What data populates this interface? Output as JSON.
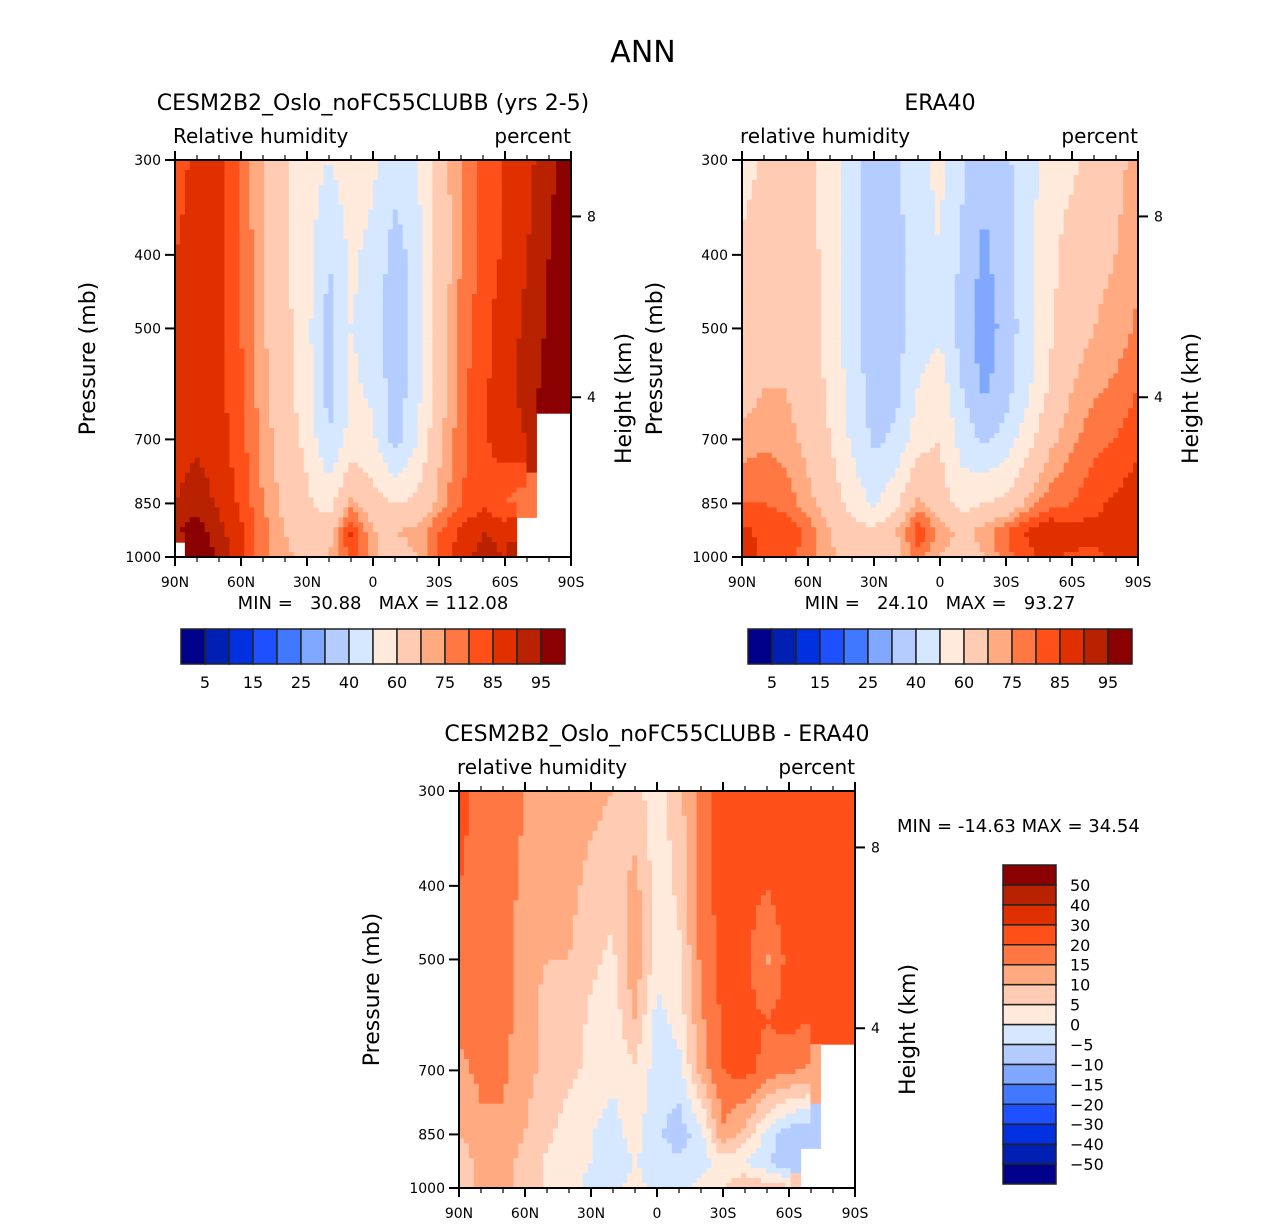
{
  "figure": {
    "main_title": "ANN",
    "palette": [
      "#00008b",
      "#0020b4",
      "#0030e0",
      "#1e50ff",
      "#4078ff",
      "#80a8ff",
      "#b4ccff",
      "#d6e8ff",
      "#ffeadb",
      "#ffccb3",
      "#ffaa80",
      "#ff7844",
      "#ff501a",
      "#e03000",
      "#b82200",
      "#8b0000"
    ]
  },
  "chart_data": [
    {
      "id": "model",
      "type": "heatmap",
      "title": "CESM2B2_Oslo_noFC55CLUBB (yrs 2-5)",
      "left_label": "Relative humidity",
      "right_label": "percent",
      "xlabel": "",
      "ylabel": "Pressure (mb)",
      "y2label": "Height (km)",
      "x_ticks": [
        "90N",
        "60N",
        "30N",
        "0",
        "30S",
        "60S",
        "90S"
      ],
      "x_values": [
        90,
        60,
        30,
        0,
        -30,
        -60,
        -90
      ],
      "xlim": [
        90,
        -90
      ],
      "y_ticks": [
        300,
        400,
        500,
        700,
        850,
        1000
      ],
      "ylim": [
        300,
        1000
      ],
      "y2_ticks": [
        {
          "label": "8",
          "p": 356
        },
        {
          "label": "4",
          "p": 616
        }
      ],
      "stats": "MIN =   30.88   MAX = 112.08",
      "colorbar": {
        "orientation": "horizontal",
        "levels": [
          5,
          10,
          15,
          20,
          25,
          30,
          40,
          50,
          60,
          70,
          75,
          80,
          85,
          90,
          95
        ],
        "labels": [
          "5",
          "15",
          "25",
          "40",
          "60",
          "75",
          "85",
          "95"
        ]
      },
      "grid_lats": [
        90,
        80,
        70,
        60,
        50,
        40,
        30,
        20,
        10,
        0,
        -10,
        -20,
        -30,
        -40,
        -50,
        -60,
        -70,
        -80,
        -90
      ],
      "grid_levels": [
        300,
        400,
        500,
        600,
        700,
        850,
        925,
        1000
      ],
      "values": [
        [
          82,
          87,
          86,
          79,
          70,
          62,
          55,
          50,
          56,
          52,
          45,
          50,
          66,
          75,
          82,
          86,
          88,
          94,
          97
        ],
        [
          85,
          88,
          87,
          80,
          70,
          62,
          54,
          40,
          52,
          47,
          35,
          45,
          64,
          75,
          82,
          86,
          90,
          95,
          98
        ],
        [
          86,
          88,
          87,
          80,
          71,
          63,
          53,
          36,
          50,
          46,
          34,
          44,
          65,
          77,
          83,
          88,
          91,
          96,
          99
        ],
        [
          86,
          88,
          87,
          81,
          72,
          64,
          54,
          36,
          52,
          48,
          34,
          46,
          66,
          78,
          84,
          88,
          92,
          97,
          100
        ],
        [
          87,
          89,
          87,
          82,
          73,
          66,
          57,
          40,
          54,
          52,
          36,
          50,
          68,
          78,
          84,
          88,
          90,
          null,
          null
        ],
        [
          90,
          93,
          89,
          84,
          75,
          68,
          62,
          56,
          72,
          64,
          60,
          62,
          72,
          80,
          84,
          80,
          76,
          null,
          null
        ],
        [
          94,
          98,
          92,
          86,
          77,
          70,
          66,
          66,
          86,
          70,
          70,
          72,
          80,
          86,
          90,
          88,
          null,
          null,
          null
        ],
        [
          null,
          99,
          94,
          86,
          77,
          72,
          66,
          70,
          82,
          72,
          66,
          70,
          80,
          88,
          92,
          90,
          null,
          null,
          null
        ]
      ]
    },
    {
      "id": "obs",
      "type": "heatmap",
      "title": "ERA40",
      "left_label": "relative humidity",
      "right_label": "percent",
      "xlabel": "",
      "ylabel": "Pressure (mb)",
      "y2label": "Height (km)",
      "x_ticks": [
        "90N",
        "60N",
        "30N",
        "0",
        "30S",
        "60S",
        "90S"
      ],
      "x_values": [
        90,
        60,
        30,
        0,
        -30,
        -60,
        -90
      ],
      "xlim": [
        90,
        -90
      ],
      "y_ticks": [
        300,
        400,
        500,
        700,
        850,
        1000
      ],
      "ylim": [
        300,
        1000
      ],
      "y2_ticks": [
        {
          "label": "8",
          "p": 356
        },
        {
          "label": "4",
          "p": 616
        }
      ],
      "stats": "MIN =   24.10   MAX =   93.27",
      "colorbar": {
        "orientation": "horizontal",
        "levels": [
          5,
          10,
          15,
          20,
          25,
          30,
          40,
          50,
          60,
          70,
          75,
          80,
          85,
          90,
          95
        ],
        "labels": [
          "5",
          "15",
          "25",
          "40",
          "60",
          "75",
          "85",
          "95"
        ]
      },
      "grid_lats": [
        90,
        80,
        70,
        60,
        50,
        40,
        30,
        20,
        10,
        0,
        -10,
        -20,
        -30,
        -40,
        -50,
        -60,
        -70,
        -80,
        -90
      ],
      "grid_levels": [
        300,
        400,
        500,
        600,
        700,
        850,
        925,
        1000
      ],
      "values": [
        [
          55,
          62,
          64,
          62,
          55,
          45,
          35,
          38,
          48,
          52,
          42,
          32,
          38,
          46,
          55,
          58,
          64,
          68,
          72
        ],
        [
          62,
          66,
          66,
          64,
          56,
          44,
          34,
          36,
          46,
          50,
          38,
          28,
          36,
          46,
          58,
          64,
          68,
          70,
          74
        ],
        [
          64,
          68,
          68,
          65,
          56,
          44,
          34,
          36,
          46,
          48,
          36,
          24,
          34,
          46,
          58,
          66,
          70,
          72,
          76
        ],
        [
          66,
          70,
          70,
          66,
          58,
          46,
          35,
          37,
          50,
          56,
          40,
          28,
          36,
          48,
          62,
          70,
          74,
          76,
          80
        ],
        [
          72,
          74,
          72,
          68,
          60,
          48,
          38,
          42,
          56,
          60,
          46,
          38,
          44,
          56,
          68,
          74,
          78,
          80,
          84
        ],
        [
          80,
          80,
          78,
          72,
          66,
          56,
          48,
          58,
          72,
          64,
          56,
          60,
          62,
          72,
          78,
          80,
          84,
          86,
          88
        ],
        [
          86,
          84,
          84,
          78,
          70,
          64,
          62,
          70,
          84,
          74,
          68,
          72,
          80,
          86,
          90,
          88,
          86,
          86,
          88
        ],
        [
          88,
          84,
          82,
          78,
          72,
          64,
          60,
          66,
          78,
          70,
          66,
          70,
          78,
          84,
          86,
          84,
          84,
          86,
          88
        ]
      ]
    },
    {
      "id": "diff",
      "type": "heatmap",
      "title": "CESM2B2_Oslo_noFC55CLUBB - ERA40",
      "left_label": "relative humidity",
      "right_label": "percent",
      "xlabel": "",
      "ylabel": "Pressure (mb)",
      "y2label": "Height (km)",
      "x_ticks": [
        "90N",
        "60N",
        "30N",
        "0",
        "30S",
        "60S",
        "90S"
      ],
      "x_values": [
        90,
        60,
        30,
        0,
        -30,
        -60,
        -90
      ],
      "xlim": [
        90,
        -90
      ],
      "y_ticks": [
        300,
        400,
        500,
        700,
        850,
        1000
      ],
      "ylim": [
        300,
        1000
      ],
      "y2_ticks": [
        {
          "label": "8",
          "p": 356
        },
        {
          "label": "4",
          "p": 616
        }
      ],
      "stats": "MIN = -14.63   MAX =  34.54",
      "colorbar": {
        "orientation": "vertical",
        "levels": [
          -50,
          -40,
          -30,
          -20,
          -15,
          -10,
          -5,
          0,
          5,
          10,
          15,
          20,
          30,
          40,
          50
        ],
        "labels": [
          "-50",
          "-40",
          "-30",
          "-20",
          "-15",
          "-10",
          "-5",
          "0",
          "5",
          "10",
          "15",
          "20",
          "30",
          "40",
          "50"
        ]
      },
      "grid_lats": [
        90,
        80,
        70,
        60,
        50,
        40,
        30,
        20,
        10,
        0,
        -10,
        -20,
        -30,
        -40,
        -50,
        -60,
        -70,
        -80,
        -90
      ],
      "grid_levels": [
        300,
        400,
        500,
        600,
        700,
        850,
        925,
        1000
      ],
      "values": [
        [
          22,
          18,
          17,
          15,
          14,
          14,
          12,
          10,
          6,
          3,
          8,
          18,
          22,
          24,
          26,
          30,
          25,
          24,
          22
        ],
        [
          20,
          18,
          17,
          14,
          12,
          12,
          8,
          6,
          12,
          2,
          6,
          18,
          22,
          23,
          20,
          24,
          22,
          22,
          22
        ],
        [
          18,
          18,
          17,
          12,
          10,
          10,
          6,
          4,
          14,
          2,
          4,
          16,
          22,
          22,
          14,
          22,
          22,
          24,
          24
        ],
        [
          16,
          17,
          17,
          12,
          8,
          8,
          4,
          2,
          10,
          -2,
          2,
          14,
          21,
          22,
          20,
          22,
          20,
          22,
          24
        ],
        [
          14,
          16,
          16,
          12,
          8,
          6,
          4,
          1,
          4,
          -2,
          -2,
          12,
          20,
          22,
          18,
          16,
          14,
          null,
          null
        ],
        [
          10,
          14,
          14,
          10,
          6,
          3,
          0,
          -2,
          2,
          -4,
          -8,
          -2,
          14,
          8,
          -2,
          -8,
          -10,
          null,
          null
        ],
        [
          6,
          12,
          12,
          8,
          4,
          2,
          0,
          -3,
          0,
          -2,
          -4,
          -2,
          2,
          0,
          -4,
          -10,
          null,
          null,
          null
        ],
        [
          6,
          12,
          12,
          8,
          4,
          2,
          -2,
          -2,
          2,
          -2,
          -2,
          2,
          4,
          10,
          8,
          6,
          null,
          null,
          null
        ]
      ]
    }
  ]
}
